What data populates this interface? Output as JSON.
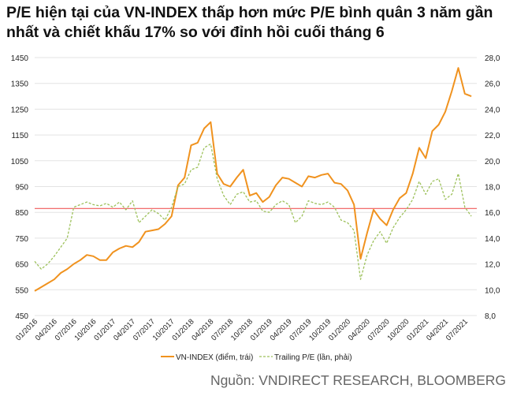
{
  "title": "P/E hiện tại của VN-INDEX thấp hơn mức P/E bình quân 3 năm gần nhất và chiết khấu 17% so với đỉnh hồi cuối tháng 6",
  "source": "Nguồn: VNDIRECT RESEARCH, BLOOMBERG",
  "chart_data": {
    "type": "line",
    "title": "P/E hiện tại của VN-INDEX thấp hơn mức P/E bình quân 3 năm gần nhất và chiết khấu 17% so với đỉnh hồi cuối tháng 6",
    "x_tick_labels": [
      "01/2016",
      "04/2016",
      "07/2016",
      "10/2016",
      "01/2017",
      "04/2017",
      "07/2017",
      "10/2017",
      "01/2018",
      "04/2018",
      "07/2018",
      "10/2018",
      "01/2019",
      "04/2019",
      "07/2019",
      "10/2019",
      "01/2020",
      "04/2020",
      "07/2020",
      "10/2020",
      "01/2021",
      "04/2021",
      "07/2021"
    ],
    "x_start": "01/2016",
    "x_frequency": "monthly",
    "y_left": {
      "ylim": [
        450,
        1450
      ],
      "ticks": [
        "450",
        "550",
        "650",
        "750",
        "850",
        "950",
        "1050",
        "1150",
        "1250",
        "1350",
        "1450"
      ]
    },
    "y_right": {
      "ylim": [
        8,
        28
      ],
      "ticks": [
        "8,0",
        "10,0",
        "12,0",
        "14,0",
        "16,0",
        "18,0",
        "20,0",
        "22,0",
        "24,0",
        "26,0",
        "28,0"
      ]
    },
    "grid": "horizontal",
    "legend_position": "bottom",
    "series": [
      {
        "name": "VN-INDEX (điểm, trái)",
        "axis": "left",
        "color": "#f0921e",
        "style": "solid",
        "values": [
          545,
          560,
          575,
          590,
          615,
          630,
          650,
          665,
          685,
          680,
          665,
          665,
          695,
          710,
          720,
          715,
          735,
          775,
          780,
          785,
          805,
          835,
          955,
          985,
          1110,
          1120,
          1175,
          1200,
          1000,
          960,
          950,
          985,
          1015,
          915,
          925,
          890,
          910,
          955,
          985,
          980,
          965,
          950,
          990,
          985,
          995,
          1000,
          965,
          960,
          935,
          880,
          670,
          770,
          860,
          825,
          800,
          860,
          905,
          925,
          1000,
          1100,
          1060,
          1165,
          1190,
          1240,
          1320,
          1410,
          1310,
          1300
        ]
      },
      {
        "name": "Trailing P/E (lần, phải)",
        "axis": "right",
        "color": "#9dc15b",
        "style": "dashed",
        "values": [
          12.2,
          11.6,
          12.0,
          12.6,
          13.3,
          14.0,
          16.4,
          16.6,
          16.8,
          16.6,
          16.5,
          16.7,
          16.4,
          16.8,
          16.2,
          16.9,
          15.2,
          15.7,
          16.2,
          15.9,
          15.4,
          16.4,
          18.0,
          18.2,
          19.3,
          19.5,
          21.0,
          21.3,
          18.6,
          17.3,
          16.6,
          17.4,
          17.6,
          16.8,
          16.9,
          16.1,
          16.0,
          16.6,
          16.9,
          16.6,
          15.2,
          15.7,
          16.9,
          16.7,
          16.6,
          16.8,
          16.4,
          15.4,
          15.2,
          14.6,
          10.8,
          12.7,
          13.8,
          14.5,
          13.6,
          14.8,
          15.6,
          16.2,
          17.0,
          18.4,
          17.4,
          18.4,
          18.6,
          17.0,
          17.4,
          19.0,
          16.4,
          15.7
        ]
      }
    ],
    "reference_line": {
      "axis": "right",
      "value": 16.3,
      "color": "#f05a5a"
    }
  }
}
